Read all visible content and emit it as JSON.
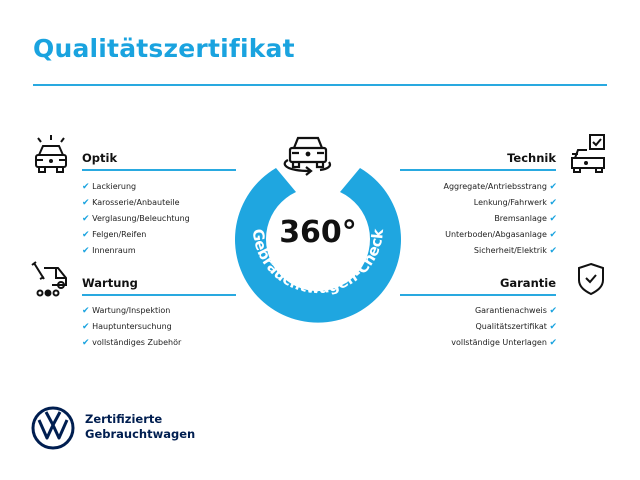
{
  "title": "Qualitätszertifikat",
  "center": {
    "degrees": "360°",
    "ring_text": "Gebrauchtwagen-Check",
    "icon": "car-rotate-icon"
  },
  "sections": {
    "optik": {
      "heading": "Optik",
      "icon": "car-lights-icon",
      "items": [
        "Lackierung",
        "Karosserie/Anbauteile",
        "Verglasung/Beleuchtung",
        "Felgen/Reifen",
        "Innenraum"
      ]
    },
    "wartung": {
      "heading": "Wartung",
      "icon": "service-van-icon",
      "items": [
        "Wartung/Inspektion",
        "Hauptuntersuchung",
        "vollständiges Zubehör"
      ]
    },
    "technik": {
      "heading": "Technik",
      "icon": "car-checkbox-icon",
      "items": [
        "Aggregate/Antriebsstrang",
        "Lenkung/Fahrwerk",
        "Bremsanlage",
        "Unterboden/Abgasanlage",
        "Sicherheit/Elektrik"
      ]
    },
    "garantie": {
      "heading": "Garantie",
      "icon": "shield-check-icon",
      "items": [
        "Garantienachweis",
        "Qualitätszertifikat",
        "vollständige Unterlagen"
      ]
    }
  },
  "check_glyph": "✔",
  "logo": {
    "line1": "Zertifizierte",
    "line2": "Gebrauchtwagen",
    "brand": "VW"
  },
  "colors": {
    "accent": "#1aa3df",
    "navy": "#001e50"
  }
}
